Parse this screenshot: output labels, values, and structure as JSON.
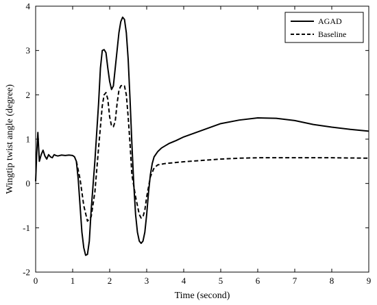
{
  "chart_data": {
    "type": "line",
    "title": "",
    "xlabel": "Time (second)",
    "ylabel": "Wingtip twist angle (degree)",
    "xlim": [
      0,
      9
    ],
    "ylim": [
      -2,
      4
    ],
    "xticks": [
      0,
      1,
      2,
      3,
      4,
      5,
      6,
      7,
      8,
      9
    ],
    "yticks": [
      -2,
      -1,
      0,
      1,
      2,
      3,
      4
    ],
    "grid": false,
    "legend_position": "top-right",
    "series": [
      {
        "name": "AGAD",
        "style": "solid",
        "color": "#000000",
        "x": [
          0,
          0.03,
          0.06,
          0.1,
          0.15,
          0.2,
          0.25,
          0.3,
          0.35,
          0.4,
          0.45,
          0.5,
          0.55,
          0.6,
          0.7,
          0.8,
          0.9,
          1.0,
          1.05,
          1.1,
          1.15,
          1.2,
          1.25,
          1.3,
          1.35,
          1.4,
          1.45,
          1.5,
          1.6,
          1.7,
          1.75,
          1.8,
          1.85,
          1.9,
          1.95,
          2.0,
          2.05,
          2.1,
          2.15,
          2.2,
          2.25,
          2.3,
          2.35,
          2.4,
          2.45,
          2.5,
          2.55,
          2.6,
          2.65,
          2.7,
          2.75,
          2.8,
          2.85,
          2.9,
          2.95,
          3.0,
          3.05,
          3.1,
          3.15,
          3.2,
          3.3,
          3.4,
          3.5,
          3.6,
          3.8,
          4.0,
          4.5,
          5.0,
          5.5,
          6.0,
          6.5,
          7.0,
          7.5,
          8.0,
          8.5,
          9.0
        ],
        "y": [
          0.05,
          0.7,
          1.15,
          0.5,
          0.65,
          0.75,
          0.62,
          0.55,
          0.65,
          0.6,
          0.58,
          0.65,
          0.63,
          0.62,
          0.64,
          0.63,
          0.64,
          0.63,
          0.6,
          0.5,
          0.1,
          -0.5,
          -1.1,
          -1.45,
          -1.62,
          -1.6,
          -1.3,
          -0.6,
          0.5,
          1.8,
          2.6,
          3.0,
          3.02,
          2.95,
          2.6,
          2.3,
          2.12,
          2.2,
          2.6,
          3.0,
          3.4,
          3.65,
          3.75,
          3.7,
          3.4,
          2.8,
          1.9,
          0.9,
          0.0,
          -0.7,
          -1.1,
          -1.3,
          -1.35,
          -1.3,
          -1.1,
          -0.7,
          -0.2,
          0.2,
          0.45,
          0.6,
          0.72,
          0.8,
          0.85,
          0.9,
          0.97,
          1.05,
          1.2,
          1.35,
          1.43,
          1.48,
          1.47,
          1.42,
          1.33,
          1.27,
          1.22,
          1.18
        ]
      },
      {
        "name": "Baseline",
        "style": "dashed",
        "color": "#000000",
        "x": [
          1.1,
          1.2,
          1.3,
          1.4,
          1.5,
          1.6,
          1.7,
          1.8,
          1.85,
          1.9,
          1.95,
          2.0,
          2.05,
          2.1,
          2.15,
          2.2,
          2.25,
          2.3,
          2.35,
          2.4,
          2.45,
          2.5,
          2.55,
          2.6,
          2.7,
          2.8,
          2.85,
          2.9,
          2.95,
          3.0,
          3.1,
          3.2,
          3.3,
          3.5,
          4.0,
          4.5,
          5.0,
          5.5,
          6.0,
          7.0,
          8.0,
          9.0
        ],
        "y": [
          0.5,
          0.1,
          -0.5,
          -0.85,
          -0.75,
          -0.2,
          0.8,
          1.75,
          2.0,
          2.05,
          1.9,
          1.5,
          1.3,
          1.28,
          1.4,
          1.8,
          2.1,
          2.2,
          2.22,
          2.2,
          2.0,
          1.5,
          0.9,
          0.2,
          -0.3,
          -0.7,
          -0.78,
          -0.75,
          -0.6,
          -0.3,
          0.15,
          0.35,
          0.42,
          0.45,
          0.49,
          0.52,
          0.55,
          0.57,
          0.58,
          0.58,
          0.58,
          0.57
        ]
      }
    ]
  }
}
